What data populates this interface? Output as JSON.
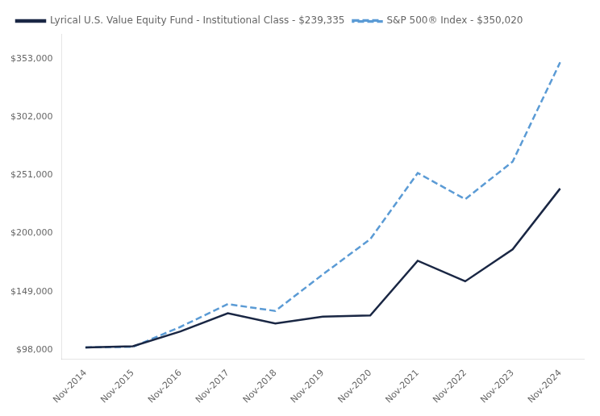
{
  "chart_data": {
    "type": "line",
    "categories": [
      "Nov-2014",
      "Nov-2015",
      "Nov-2016",
      "Nov-2017",
      "Nov-2018",
      "Nov-2019",
      "Nov-2020",
      "Nov-2021",
      "Nov-2022",
      "Nov-2023",
      "Nov-2024"
    ],
    "series": [
      {
        "name": "Lyrical U.S. Value Equity Fund - Institutional Class - $239,335",
        "color": "#1a2744",
        "line_style": "solid",
        "values": [
          100000,
          101000,
          114000,
          130000,
          121000,
          127000,
          128000,
          176000,
          158000,
          186000,
          239335
        ]
      },
      {
        "name": "S&P 500® Index - $350,020",
        "color": "#5b9bd5",
        "line_style": "dashed",
        "values": [
          100000,
          100500,
          118000,
          138000,
          132000,
          164000,
          195000,
          253000,
          230000,
          263000,
          350020
        ]
      }
    ],
    "ylim": [
      90000,
      375000
    ],
    "yticks": [
      {
        "value": 98000,
        "label": "$98,000"
      },
      {
        "value": 149000,
        "label": "$149,000"
      },
      {
        "value": 200000,
        "label": "$200,000"
      },
      {
        "value": 251000,
        "label": "$251,000"
      },
      {
        "value": 302000,
        "label": "$302,000"
      },
      {
        "value": 353000,
        "label": "$353,000"
      }
    ],
    "grid": false,
    "legend": "upper left"
  }
}
